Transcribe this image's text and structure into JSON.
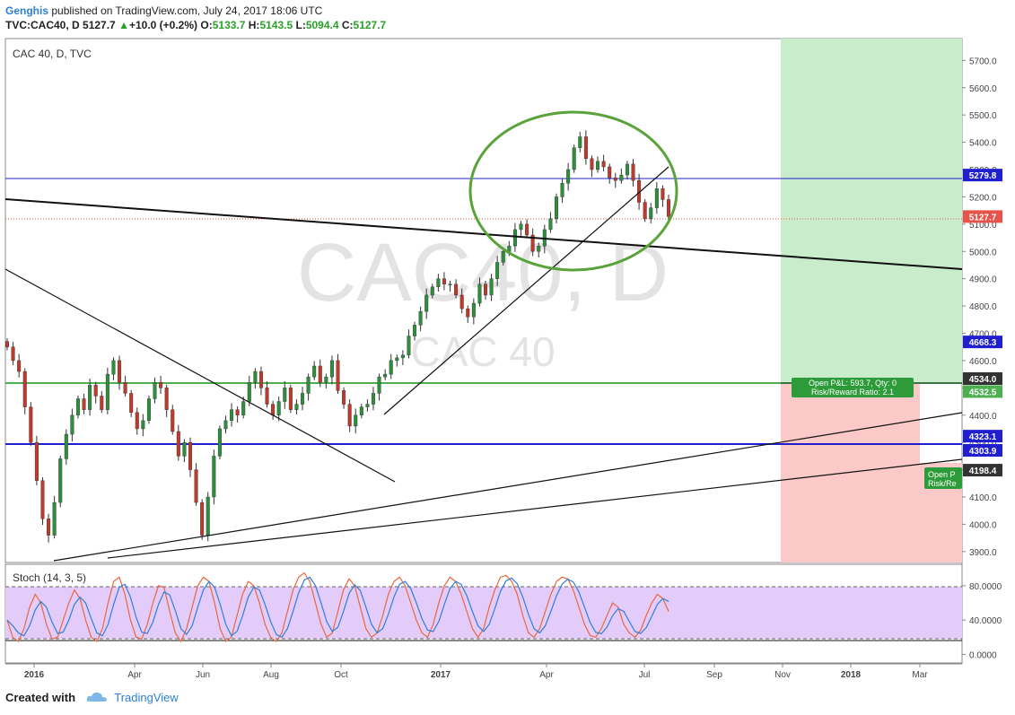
{
  "header": {
    "author": "Genghis",
    "published_text": "published on TradingView.com, July 24, 2017 18:06 UTC",
    "symbol": "TVC:CAC40, D",
    "last": "5127.7",
    "change": "+10.0 (+0.2%)",
    "o_label": "O:",
    "o_value": "5133.7",
    "h_label": "H:",
    "h_value": "5143.5",
    "l_label": "L:",
    "l_value": "5094.4",
    "c_label": "C:",
    "c_value": "5127.7"
  },
  "footer": {
    "created_with": "Created with",
    "brand": "TradingView"
  },
  "chart_data": [
    {
      "type": "candlestick",
      "title": "CAC 40, D, TVC",
      "watermark_symbol": "CAC40, D",
      "watermark_name": "CAC 40",
      "ylim": [
        3860,
        5780
      ],
      "y_ticks": [
        "3900.0",
        "4000.0",
        "4100.0",
        "4200.0",
        "4300.0",
        "4400.0",
        "4500.0",
        "4600.0",
        "4700.0",
        "4800.0",
        "4900.0",
        "5000.0",
        "5100.0",
        "5200.0",
        "5300.0",
        "5400.0",
        "5500.0",
        "5600.0",
        "5700.0"
      ],
      "x_ticks": [
        "2016",
        "Apr",
        "Jun",
        "Aug",
        "Oct",
        "2017",
        "Apr",
        "Jul",
        "Sep",
        "Nov",
        "2018",
        "Mar"
      ],
      "close_series": [
        4650,
        4600,
        4560,
        4430,
        4300,
        4160,
        4020,
        3960,
        4080,
        4240,
        4330,
        4400,
        4460,
        4420,
        4510,
        4470,
        4420,
        4550,
        4600,
        4520,
        4480,
        4410,
        4350,
        4380,
        4460,
        4520,
        4500,
        4420,
        4340,
        4250,
        4300,
        4200,
        4080,
        3960,
        4100,
        4250,
        4350,
        4380,
        4420,
        4400,
        4450,
        4520,
        4560,
        4500,
        4440,
        4400,
        4450,
        4500,
        4420,
        4440,
        4480,
        4540,
        4580,
        4520,
        4540,
        4600,
        4490,
        4440,
        4360,
        4400,
        4430,
        4440,
        4480,
        4540,
        4550,
        4600,
        4610,
        4620,
        4690,
        4730,
        4780,
        4840,
        4870,
        4900,
        4880,
        4880,
        4840,
        4790,
        4760,
        4810,
        4880,
        4840,
        4900,
        4960,
        5000,
        5020,
        5080,
        5100,
        5060,
        5000,
        5020,
        5080,
        5120,
        5200,
        5250,
        5300,
        5380,
        5420,
        5340,
        5300,
        5330,
        5310,
        5270,
        5260,
        5280,
        5320,
        5260,
        5180,
        5120,
        5160,
        5230,
        5190,
        5127.7
      ],
      "series": [
        {
          "name": "Stoch (14, 3, 5)",
          "ylim": [
            -10,
            105
          ],
          "y_ticks": [
            "0.0000",
            "40.0000",
            "80.0000"
          ],
          "bands": [
            20,
            80
          ],
          "values": [
            40,
            20,
            15,
            30,
            55,
            70,
            60,
            35,
            18,
            20,
            40,
            60,
            75,
            65,
            40,
            20,
            15,
            30,
            60,
            85,
            90,
            70,
            40,
            20,
            18,
            35,
            60,
            80,
            78,
            50,
            25,
            15,
            30,
            55,
            80,
            90,
            85,
            60,
            30,
            15,
            20,
            45,
            70,
            85,
            80,
            60,
            35,
            20,
            15,
            25,
            50,
            75,
            90,
            95,
            85,
            60,
            35,
            20,
            25,
            50,
            75,
            88,
            80,
            55,
            30,
            20,
            25,
            45,
            70,
            85,
            90,
            80,
            60,
            40,
            25,
            20,
            35,
            60,
            80,
            90,
            85,
            70,
            50,
            30,
            20,
            30,
            55,
            75,
            90,
            92,
            85,
            70,
            45,
            25,
            20,
            30,
            50,
            70,
            85,
            90,
            88,
            75,
            55,
            35,
            22,
            20,
            30,
            45,
            60,
            55,
            35,
            25,
            20,
            28,
            45,
            60,
            70,
            65,
            50
          ]
        }
      ],
      "annotations": {
        "horizontal_levels": [
          {
            "label": "5279.8",
            "value": 5279.8,
            "color": "#1f1fd0"
          },
          {
            "label": "5127.7",
            "value": 5127.7,
            "color": "#e5534b"
          },
          {
            "label": "4668.3",
            "value": 4668.3,
            "color": "#1f1fd0"
          },
          {
            "label": "4534.0",
            "value": 4534.0,
            "color": "#333333"
          },
          {
            "label": "4532.5",
            "value": 4532.5,
            "color": "#4caf50"
          },
          {
            "label": "4323.1",
            "value": 4323.1,
            "color": "#1f1fd0"
          },
          {
            "label": "4303.9",
            "value": 4303.9,
            "color": "#1f1fd0"
          },
          {
            "label": "4198.4",
            "value": 4198.4,
            "color": "#333333"
          }
        ],
        "position_box_1": {
          "line1": "Open P&L: 593.7, Qty: 0",
          "line2": "Risk/Reward Ratio: 2.1"
        },
        "position_box_2": {
          "line1": "Open P",
          "line2": "Risk/Re"
        }
      }
    }
  ]
}
